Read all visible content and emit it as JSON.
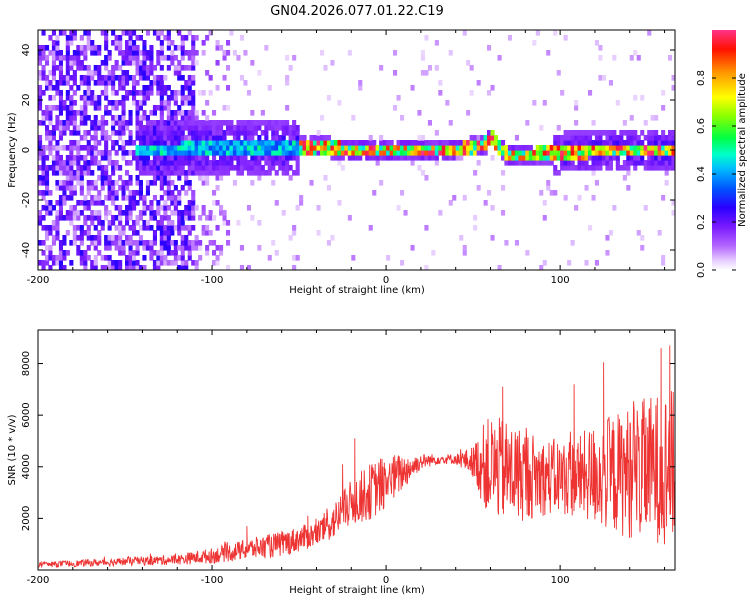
{
  "figure_title": "GN04.2026.077.01.22.C19",
  "chart_data": [
    {
      "type": "heatmap",
      "title": "GN04.2026.077.01.22.C19",
      "xlabel": "Height of straight line (km)",
      "ylabel": "Frequency (Hz)",
      "xlim": [
        -200,
        166
      ],
      "ylim": [
        -48,
        48
      ],
      "x_ticks": [
        -200,
        -100,
        0,
        100
      ],
      "x_tick_labels": [
        "-200",
        "-100",
        "0",
        "100"
      ],
      "y_ticks": [
        -40,
        -20,
        0,
        20,
        40
      ],
      "y_tick_labels": [
        "-40",
        "-20",
        "0",
        "20",
        "40"
      ],
      "colorbar": {
        "label": "Normalized spectral amplitude",
        "range": [
          0,
          1
        ],
        "ticks": [
          0.0,
          0.2,
          0.4,
          0.6,
          0.8
        ],
        "tick_labels": [
          "0.0",
          "0.2",
          "0.4",
          "0.6",
          "0.8"
        ],
        "colormap": [
          "#ffffff",
          "#d9b3ff",
          "#9933ff",
          "#3300ff",
          "#0066ff",
          "#00ccff",
          "#00ff66",
          "#66ff00",
          "#ffff00",
          "#ff9900",
          "#ff0000",
          "#ff3388"
        ]
      },
      "regions": [
        {
          "description": "broadband noise",
          "x_range": [
            -200,
            -110
          ],
          "f_range": [
            -48,
            48
          ],
          "amplitude": [
            0.1,
            0.25
          ]
        },
        {
          "description": "diffuse band",
          "x_range": [
            -145,
            -50
          ],
          "f_range": [
            -10,
            10
          ],
          "amplitude": [
            0.15,
            0.35
          ]
        },
        {
          "description": "narrow carrier",
          "x_range": [
            -50,
            166
          ],
          "f_range": [
            -2,
            2
          ],
          "amplitude": [
            0.5,
            1.0
          ]
        },
        {
          "description": "widened band",
          "x_range": [
            90,
            166
          ],
          "f_range": [
            -8,
            8
          ],
          "amplitude": [
            0.2,
            0.5
          ]
        }
      ],
      "carrier_track": [
        [
          -140,
          0
        ],
        [
          -100,
          1
        ],
        [
          -60,
          1
        ],
        [
          -40,
          1.5
        ],
        [
          -20,
          0
        ],
        [
          0,
          0
        ],
        [
          40,
          0
        ],
        [
          55,
          2
        ],
        [
          60,
          5
        ],
        [
          65,
          0
        ],
        [
          70,
          -2
        ],
        [
          100,
          -1
        ],
        [
          130,
          0
        ],
        [
          166,
          0
        ]
      ]
    },
    {
      "type": "line",
      "title": "",
      "xlabel": "Height of straight line (km)",
      "ylabel": "SNR (10 * v/v)",
      "xlim": [
        -200,
        166
      ],
      "ylim": [
        0,
        9300
      ],
      "x_ticks": [
        -200,
        -100,
        0,
        100
      ],
      "x_tick_labels": [
        "-200",
        "-100",
        "0",
        "100"
      ],
      "y_ticks": [
        2000,
        4000,
        6000,
        8000
      ],
      "y_tick_labels": [
        "2000",
        "4000",
        "6000",
        "8000"
      ],
      "color": "#ee3333",
      "envelope": {
        "x": [
          -200,
          -160,
          -120,
          -100,
          -80,
          -60,
          -40,
          -30,
          -20,
          -10,
          0,
          10,
          20,
          30,
          40,
          50,
          55,
          60,
          70,
          80,
          90,
          100,
          110,
          120,
          130,
          140,
          150,
          160,
          166
        ],
        "mean": [
          200,
          300,
          400,
          550,
          800,
          1000,
          1400,
          1900,
          2600,
          3000,
          3400,
          3800,
          4200,
          4300,
          4300,
          4200,
          4100,
          4000,
          3800,
          3700,
          3600,
          3600,
          3600,
          3700,
          3700,
          3800,
          3900,
          4000,
          4000
        ],
        "spread": [
          100,
          150,
          200,
          300,
          400,
          500,
          500,
          700,
          900,
          1100,
          1100,
          700,
          300,
          200,
          200,
          600,
          1500,
          2000,
          2000,
          1800,
          1500,
          1500,
          1600,
          2000,
          2300,
          2600,
          2800,
          3000,
          3000
        ],
        "peaks": [
          [
            -80,
            1700
          ],
          [
            -45,
            2100
          ],
          [
            -25,
            4100
          ],
          [
            -18,
            5100
          ],
          [
            67,
            7100
          ],
          [
            108,
            7200
          ],
          [
            125,
            8050
          ],
          [
            158,
            8600
          ],
          [
            163,
            8700
          ]
        ]
      }
    }
  ]
}
